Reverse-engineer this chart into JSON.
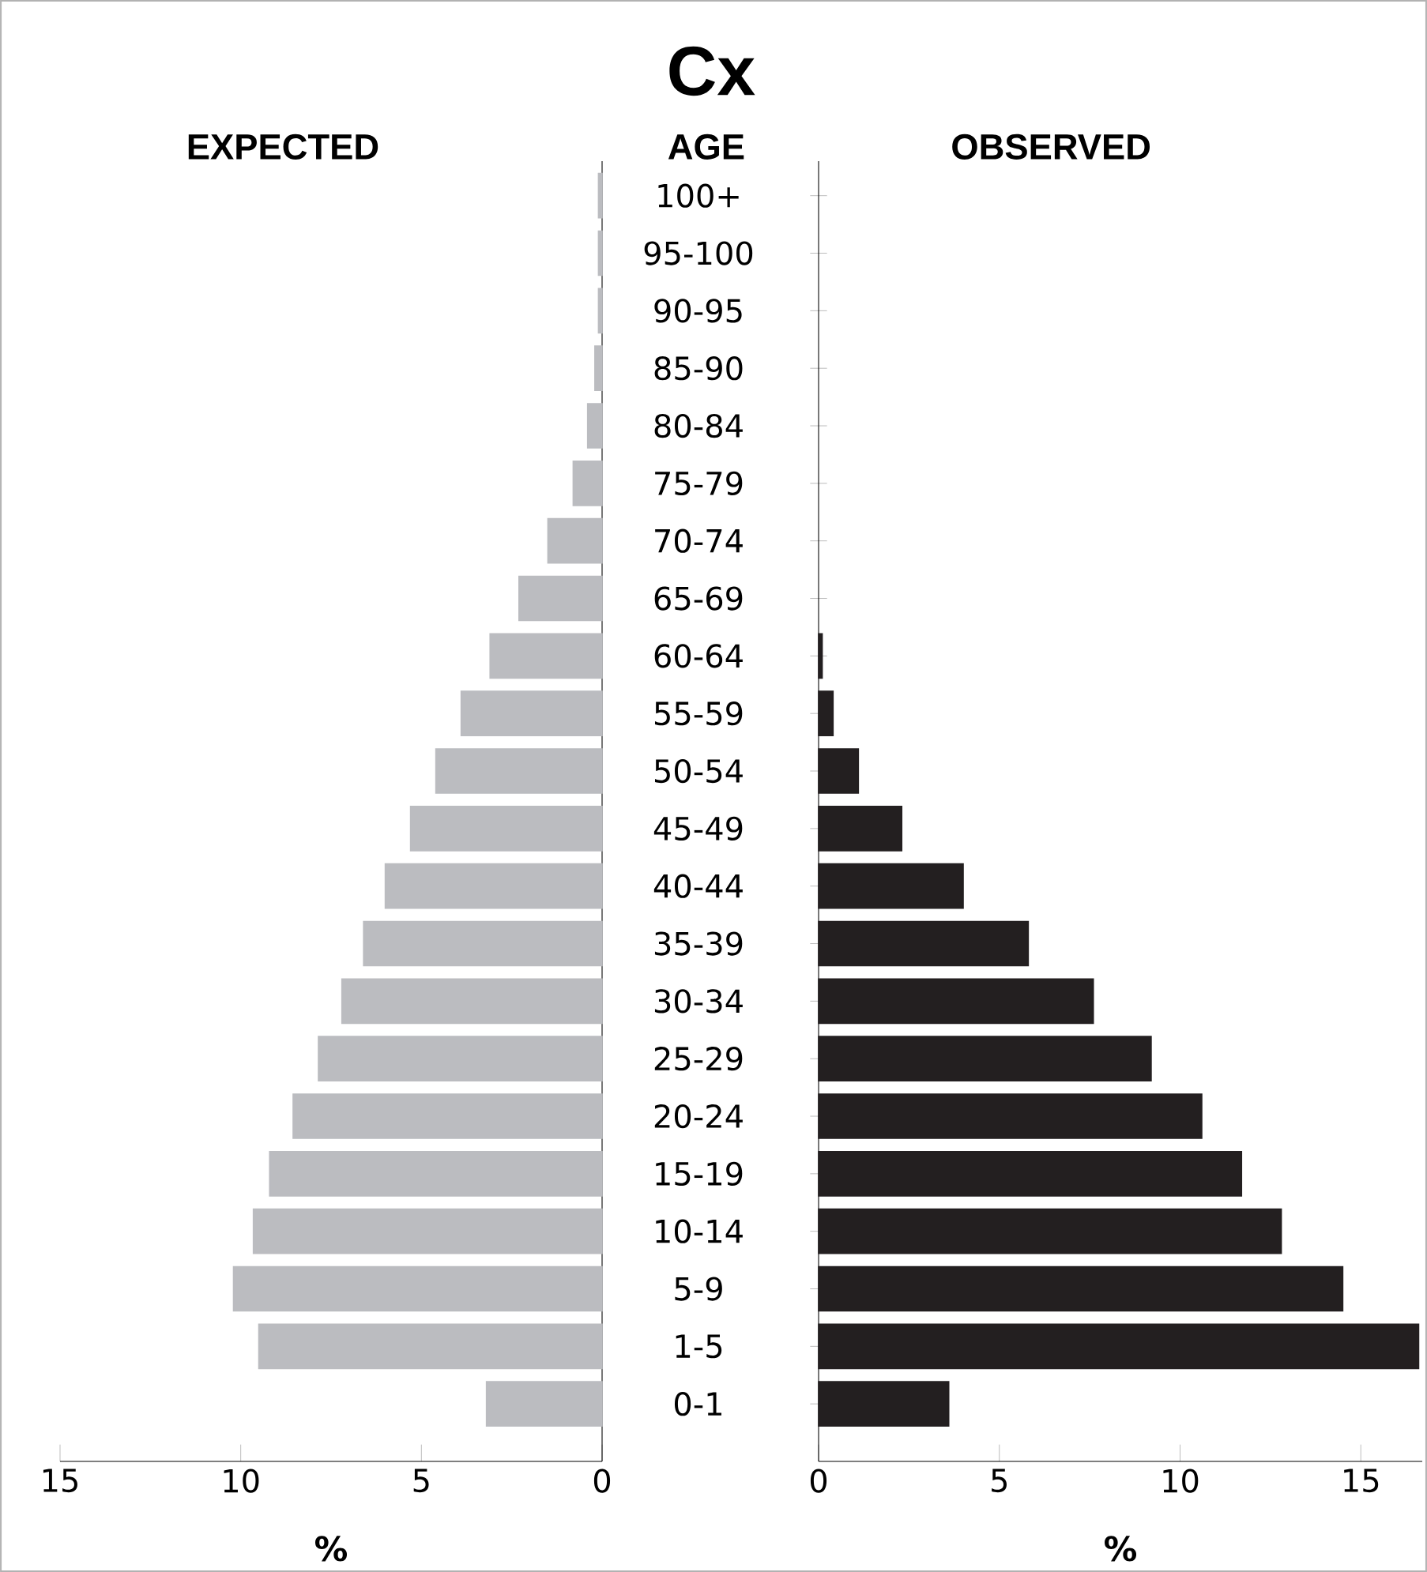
{
  "chart_data": [
    {
      "type": "bar",
      "orientation": "horizontal",
      "title": "EXPECTED",
      "xlabel": "%",
      "tick_labels": "x",
      "categories": [
        null,
        null,
        null,
        null,
        null,
        null,
        null,
        null,
        null,
        null,
        null,
        null,
        null,
        null,
        null,
        null,
        null,
        null,
        null,
        null,
        null,
        null
      ],
      "values": [
        0.1,
        0.1,
        0.1,
        0.2,
        0.4,
        0.8,
        1.5,
        2.3,
        3.1,
        3.9,
        4.6,
        5.3,
        6.0,
        6.6,
        7.2,
        7.85,
        8.55,
        9.2,
        9.65,
        10.2,
        9.5,
        3.2
      ],
      "color": "#bbbcc0",
      "xlim": [
        15,
        0
      ],
      "xticks": [
        15,
        10,
        5,
        0
      ]
    },
    {
      "type": "bar",
      "orientation": "horizontal",
      "title": "Cx",
      "subtitle": "OBSERVED",
      "ylabel": "AGE",
      "xlabel": "%",
      "categories": [
        "100+",
        "95-100",
        "90-95",
        "85-90",
        "80-84",
        "75-79",
        "70-74",
        "65-69",
        "60-64",
        "55-59",
        "50-54",
        "45-49",
        "40-44",
        "35-39",
        "30-34",
        "25-29",
        "20-24",
        "15-19",
        "10-14",
        "5-9",
        "1-5",
        "0-1"
      ],
      "values": [
        0,
        0,
        0,
        0,
        0,
        0,
        0,
        0,
        0.1,
        0.4,
        1.1,
        2.3,
        4.0,
        5.8,
        7.6,
        9.2,
        10.6,
        11.7,
        12.8,
        14.5,
        16.6,
        3.6
      ],
      "color": "#231f20",
      "xlim": [
        0,
        16.7
      ],
      "xticks": [
        0,
        5,
        10,
        15
      ]
    }
  ]
}
